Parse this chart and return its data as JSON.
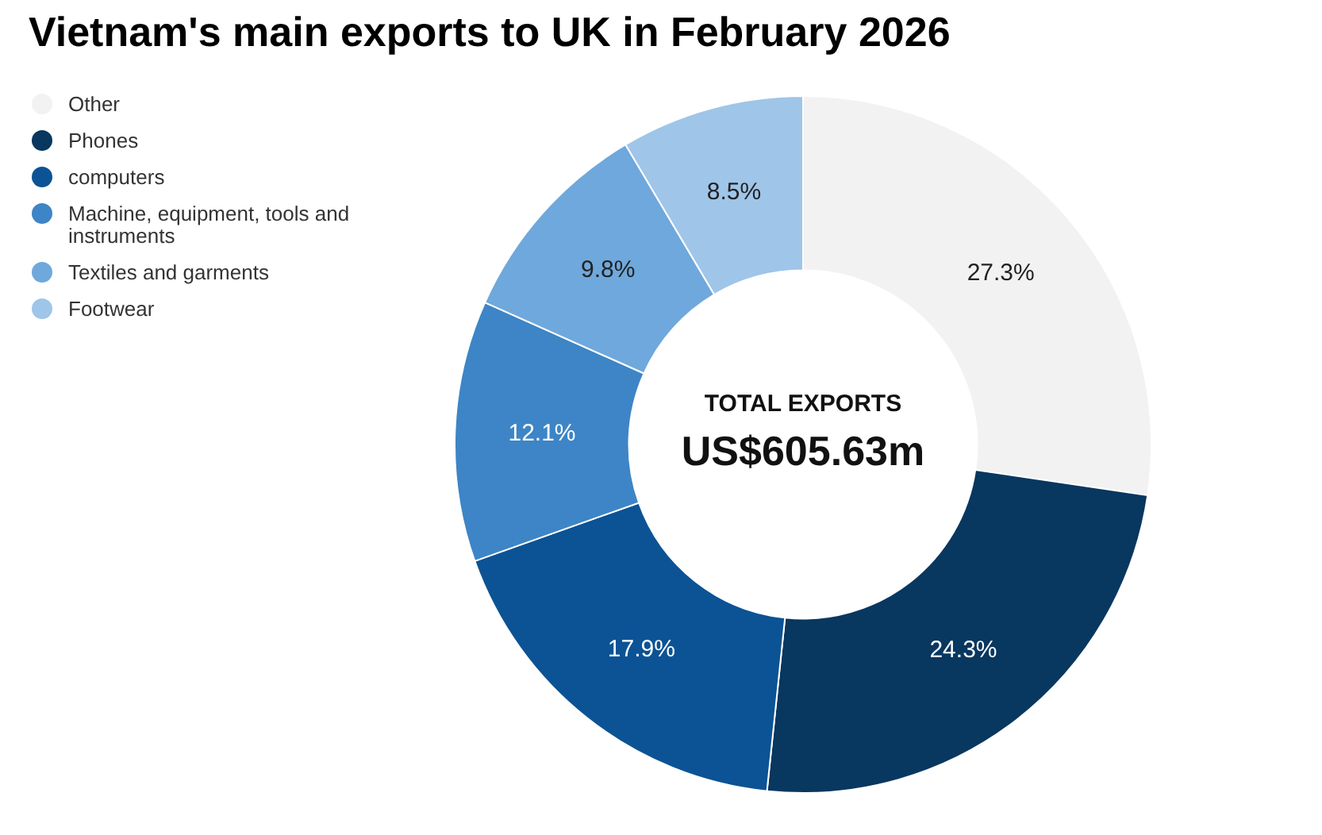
{
  "chart_data": {
    "type": "donut",
    "title": "Vietnam's main exports to UK in February 2026",
    "categories": [
      "Other",
      "Phones",
      "computers",
      "Machine, equipment, tools and instruments",
      "Textiles and garments",
      "Footwear"
    ],
    "values": [
      27.3,
      24.3,
      17.9,
      12.1,
      9.8,
      8.5
    ],
    "colors": [
      "#f2f2f2",
      "#08375f",
      "#0b5394",
      "#3d85c6",
      "#6fa8dc",
      "#9fc5e8"
    ],
    "value_labels": [
      "27.3%",
      "24.3%",
      "17.9%",
      "12.1%",
      "9.8%",
      "8.5%"
    ],
    "annotations": [
      "TOTAL EXPORTS",
      "US$605.63m"
    ],
    "legend": "top left"
  }
}
